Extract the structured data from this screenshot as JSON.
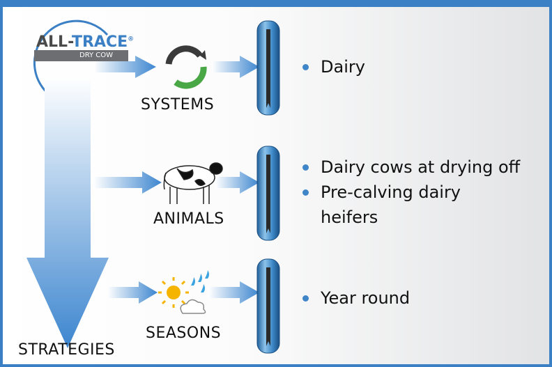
{
  "logo": {
    "brand_prefix": "ALL-",
    "brand_suffix": "TRACE",
    "registered": "®",
    "subtitle": "DRY COW"
  },
  "strategies_label": "STRATEGIES",
  "rows": [
    {
      "label": "SYSTEMS",
      "bullets": [
        "Dairy"
      ]
    },
    {
      "label": "ANIMALS",
      "bullets": [
        "Dairy cows at drying off",
        "Pre-calving dairy heifers"
      ]
    },
    {
      "label": "SEASONS",
      "bullets": [
        "Year round"
      ]
    }
  ]
}
